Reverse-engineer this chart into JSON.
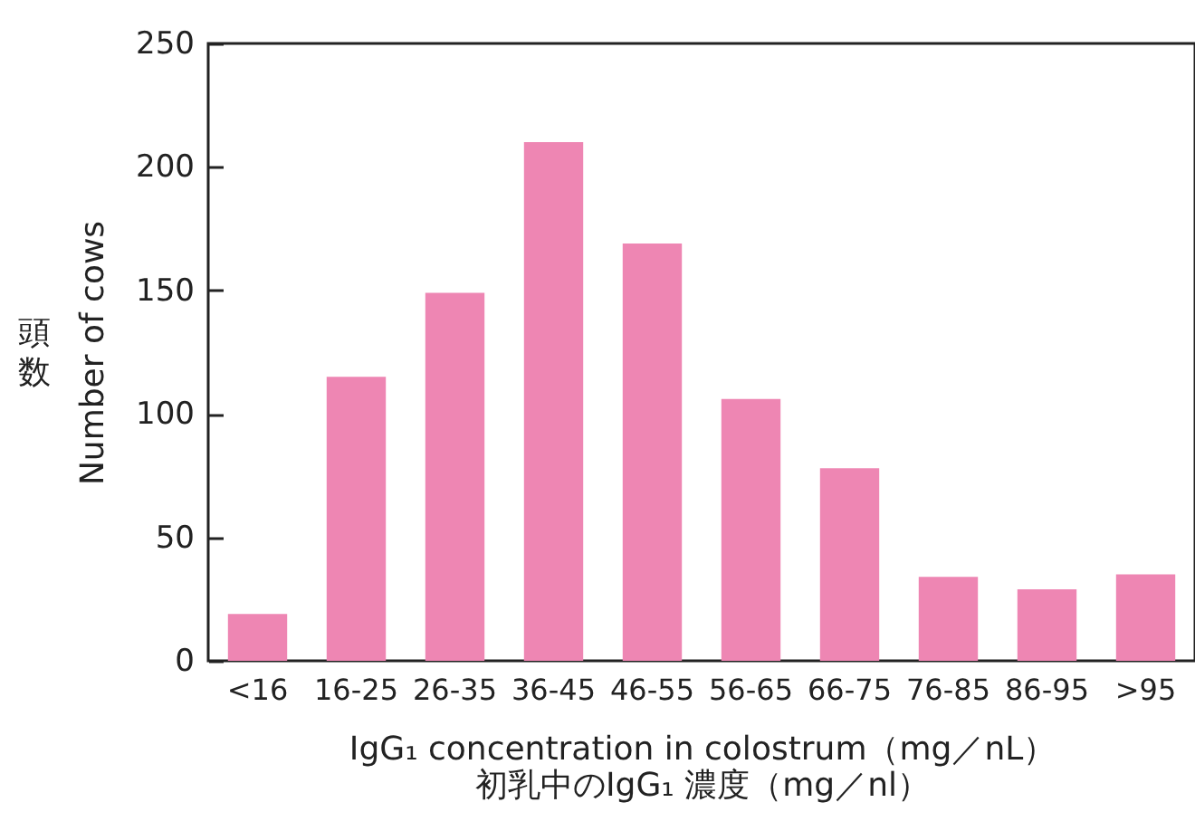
{
  "chart_data": {
    "type": "bar",
    "xlabel": [
      "IgG₁ concentration in colostrum（mg／nL）",
      "初乳中のIgG₁ 濃度（mg／nl）"
    ],
    "ylabel": [
      "頭数",
      "Number of cows"
    ],
    "categories": [
      "<16",
      "16-25",
      "26-35",
      "36-45",
      "46-55",
      "56-65",
      "66-75",
      "76-85",
      "86-95",
      ">95"
    ],
    "values": [
      19,
      115,
      149,
      210,
      169,
      106,
      78,
      34,
      29,
      35
    ],
    "color": "#ee86b3",
    "ylim": [
      0,
      250
    ],
    "yticks": [
      0,
      50,
      100,
      150,
      200,
      250
    ],
    "grid": false
  }
}
